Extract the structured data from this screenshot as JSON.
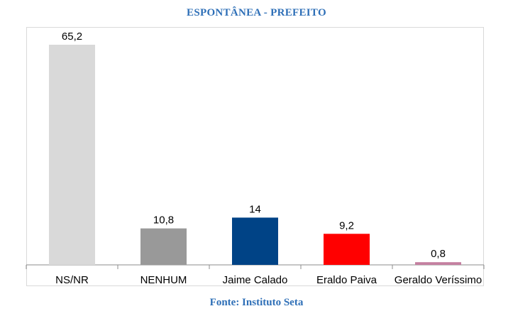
{
  "chart_data": {
    "type": "bar",
    "title": "ESPONTÂNEA - PREFEITO",
    "categories": [
      "NS/NR",
      "NENHUM",
      "Jaime Calado",
      "Eraldo Paiva",
      "Geraldo Veríssimo"
    ],
    "values": [
      65.2,
      10.8,
      14,
      9.2,
      0.8
    ],
    "value_labels": [
      "65,2",
      "10,8",
      "14",
      "9,2",
      "0,8"
    ],
    "colors": [
      "#d9d9d9",
      "#999999",
      "#004386",
      "#ff0000",
      "#c47fa0"
    ],
    "ylim": [
      0,
      66.5
    ],
    "grid": false,
    "legend": "none"
  },
  "source": "Fonte: Instituto Seta"
}
